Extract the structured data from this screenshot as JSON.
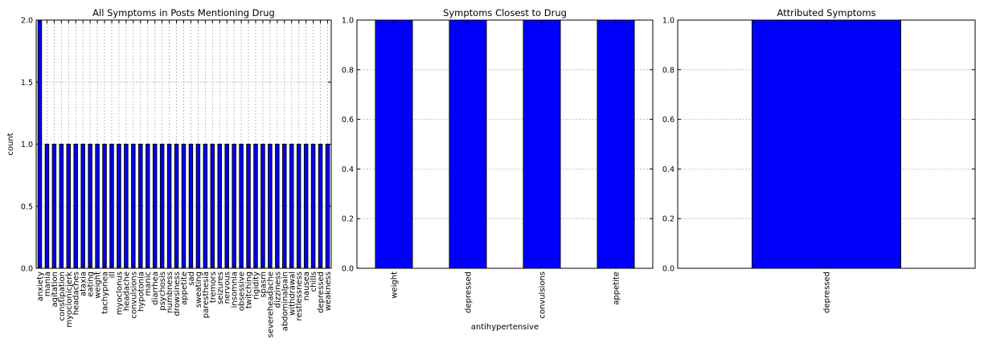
{
  "chart_data": [
    {
      "type": "bar",
      "title": "All Symptoms in Posts Mentioning Drug",
      "xlabel": "",
      "ylabel": "count",
      "ylim": [
        0,
        2.0
      ],
      "yticks": [
        "0.0",
        "0.5",
        "1.0",
        "1.5",
        "2.0"
      ],
      "grid": true,
      "bar_color": "#0000ff",
      "categories": [
        "anxiety",
        "mania",
        "agitation",
        "constipation",
        "myoclonicjerk",
        "headaches",
        "ataxia",
        "eating",
        "weight",
        "tachypnea",
        "ill",
        "myoclonus",
        "headache",
        "convulsions",
        "hypotonia",
        "manic",
        "diarrhea",
        "psychosis",
        "numbness",
        "drowsiness",
        "appetite",
        "sad",
        "sweating",
        "paresthesia",
        "tremors",
        "seizures",
        "nervous",
        "insomnia",
        "obsessive",
        "twitching",
        "rigidity",
        "spasm",
        "severeheadache",
        "dizziness",
        "abdominalpain",
        "withdrawal",
        "restlessness",
        "nausea",
        "chills",
        "depressed",
        "weakness"
      ],
      "values": [
        2,
        1,
        1,
        1,
        1,
        1,
        1,
        1,
        1,
        1,
        1,
        1,
        1,
        1,
        1,
        1,
        1,
        1,
        1,
        1,
        1,
        1,
        1,
        1,
        1,
        1,
        1,
        1,
        1,
        1,
        1,
        1,
        1,
        1,
        1,
        1,
        1,
        1,
        1,
        1,
        1
      ]
    },
    {
      "type": "bar",
      "title": "Symptoms Closest to Drug",
      "xlabel": "antihypertensive",
      "ylabel": "",
      "ylim": [
        0,
        1.0
      ],
      "yticks": [
        "0.0",
        "0.2",
        "0.4",
        "0.6",
        "0.8",
        "1.0"
      ],
      "grid": true,
      "bar_color": "#0000ff",
      "categories": [
        "weight",
        "depressed",
        "convulsions",
        "appetite"
      ],
      "values": [
        1,
        1,
        1,
        1
      ]
    },
    {
      "type": "bar",
      "title": "Attributed Symptoms",
      "xlabel": "",
      "ylabel": "",
      "ylim": [
        0,
        1.0
      ],
      "yticks": [
        "0.0",
        "0.2",
        "0.4",
        "0.6",
        "0.8",
        "1.0"
      ],
      "grid": true,
      "bar_color": "#0000ff",
      "categories": [
        "depressed"
      ],
      "values": [
        1
      ]
    }
  ]
}
